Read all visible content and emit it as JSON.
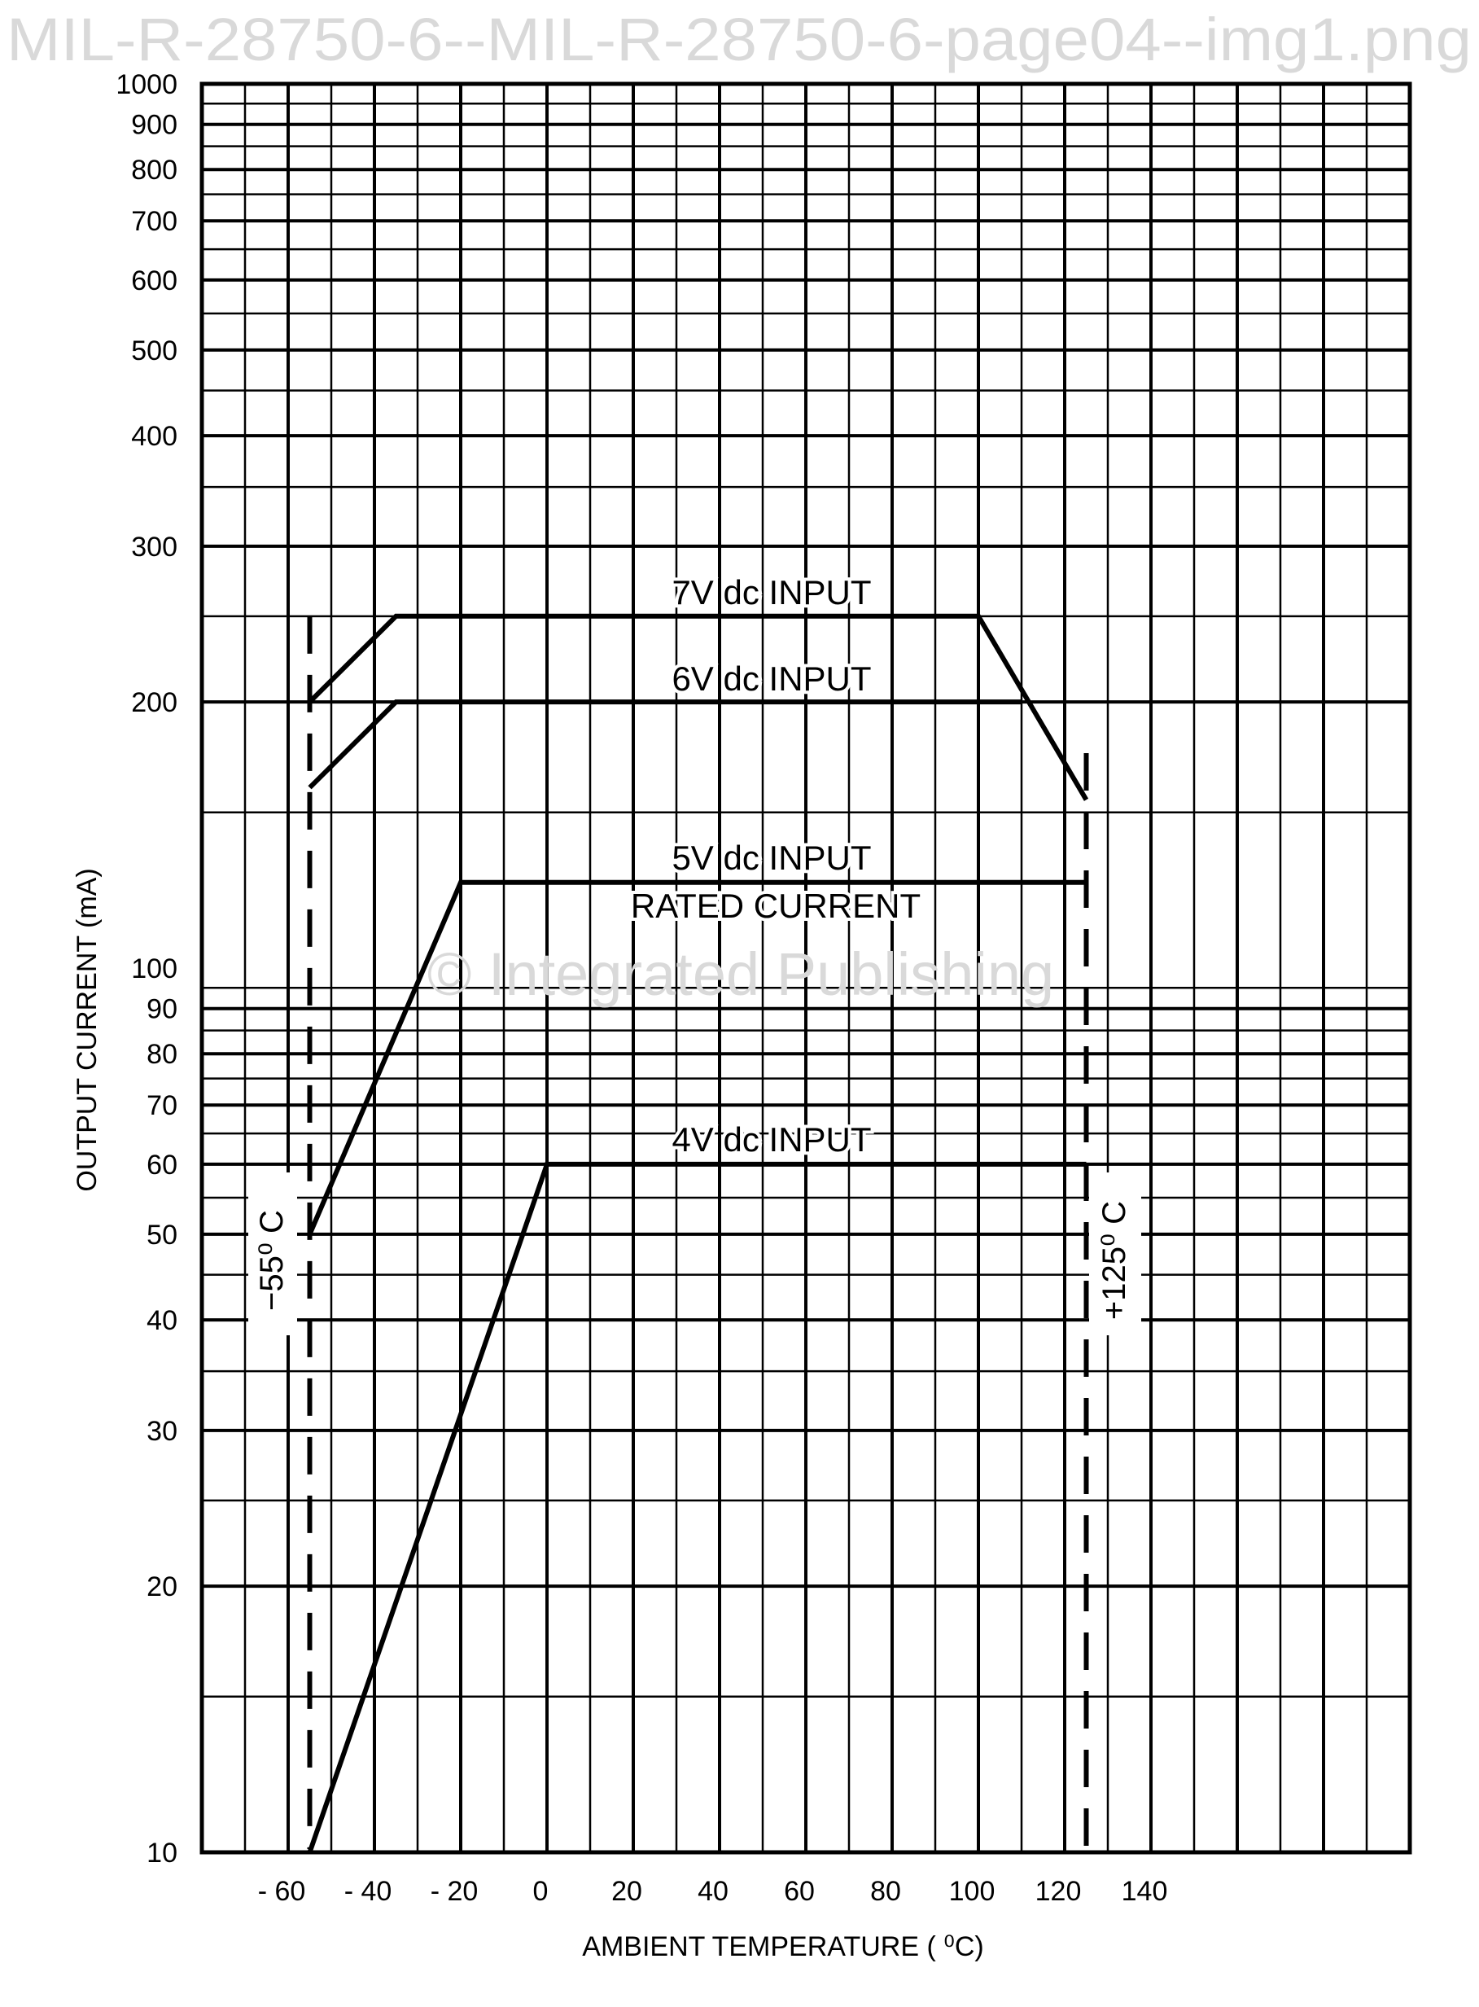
{
  "chart_data": {
    "type": "line",
    "title": "",
    "xlabel": "AMBIENT TEMPERATURE ( ⁰C)",
    "ylabel": "OUTPUT CURRENT (mA)",
    "xlim": [
      -80,
      200
    ],
    "ylim": [
      10,
      1000
    ],
    "yscale": "log",
    "grid": true,
    "x_grid_step": 10,
    "xticks": [
      -60,
      -40,
      -20,
      0,
      20,
      40,
      60,
      80,
      100,
      120,
      140
    ],
    "xtick_labels": [
      "- 60",
      "- 40",
      "- 20",
      "0",
      "20",
      "40",
      "60",
      "80",
      "100",
      "120",
      "140"
    ],
    "yticks": [
      10,
      20,
      30,
      40,
      50,
      60,
      70,
      80,
      90,
      100,
      200,
      300,
      400,
      500,
      600,
      700,
      800,
      900,
      1000
    ],
    "ytick_labels": [
      "10",
      "20",
      "30",
      "40",
      "50",
      "60",
      "70",
      "80",
      "90",
      "100",
      "200",
      "300",
      "400",
      "500",
      "600",
      "700",
      "800",
      "900",
      "1000"
    ],
    "series": [
      {
        "name": "7V dc INPUT",
        "x": [
          -55,
          -35,
          100,
          125
        ],
        "y": [
          200,
          250,
          250,
          155
        ]
      },
      {
        "name": "6V dc INPUT",
        "x": [
          -55,
          -35,
          110
        ],
        "y": [
          160,
          200,
          200
        ]
      },
      {
        "name": "5V dc INPUT",
        "x": [
          -55,
          -20,
          125
        ],
        "y": [
          50,
          125,
          125
        ]
      },
      {
        "name": "4V dc INPUT",
        "x": [
          -55,
          0,
          125
        ],
        "y": [
          10,
          60,
          60
        ]
      }
    ],
    "annotations": {
      "rated_current": "RATED CURRENT"
    },
    "limits": [
      {
        "label": "−55⁰ C",
        "x": -55,
        "y_top": 250
      },
      {
        "label": "+125⁰ C",
        "x": 125,
        "y_top": 175
      }
    ]
  },
  "watermarks": [
    "© Integrated Publishing",
    "MIL-R-28750-6--MIL-R-28750-6-page04--img1.png"
  ]
}
